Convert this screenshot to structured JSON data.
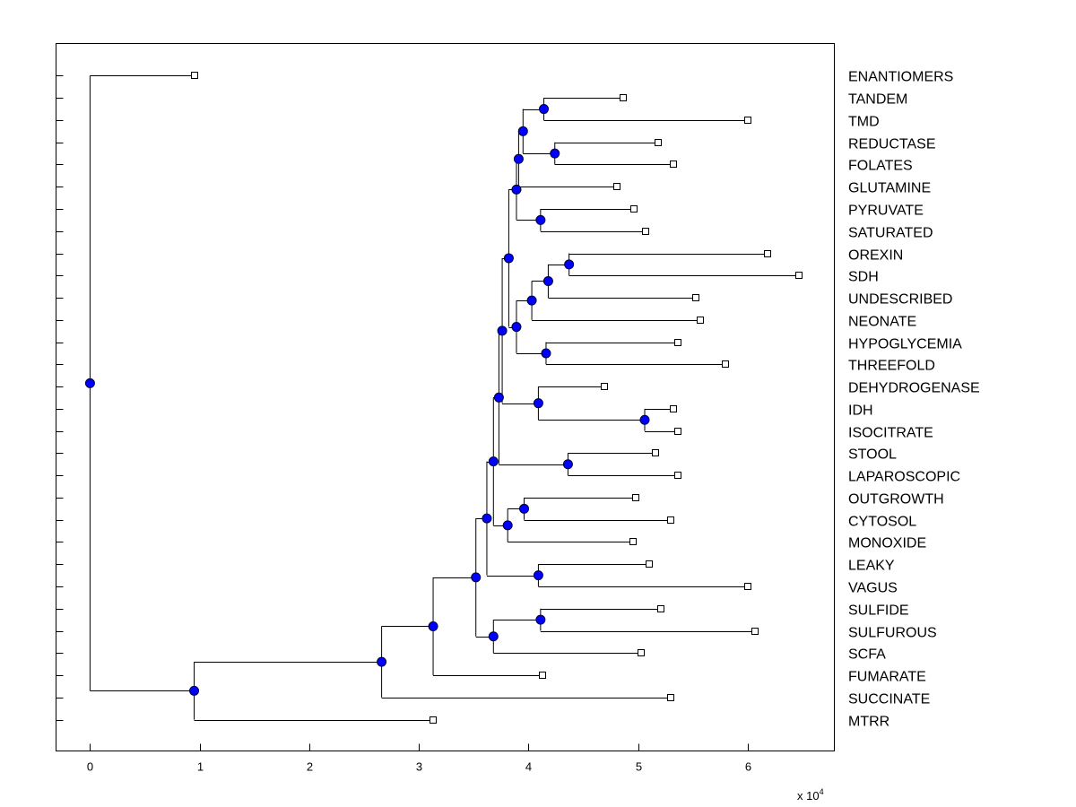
{
  "chart_data": {
    "type": "dendrogram",
    "title": "",
    "xlabel": "",
    "x_multiplier": {
      "base": "x 10",
      "exponent": "4"
    },
    "xlim": [
      -0.31,
      6.79
    ],
    "ylim": [
      -1.45,
      30.41
    ],
    "xticks": [
      0,
      1,
      2,
      3,
      4,
      5,
      6
    ],
    "xtick_labels": [
      "0",
      "1",
      "2",
      "3",
      "4",
      "5",
      "6"
    ],
    "colors": {
      "internal_node": "#0000ff",
      "leaf_fill": "#ffffff",
      "line": "#000000"
    },
    "leaves": [
      {
        "label": "ENANTIOMERS",
        "x": 0.95
      },
      {
        "label": "TANDEM",
        "x": 4.86
      },
      {
        "label": "TMD",
        "x": 6.0
      },
      {
        "label": "REDUCTASE",
        "x": 5.18
      },
      {
        "label": "FOLATES",
        "x": 5.32
      },
      {
        "label": "GLUTAMINE",
        "x": 4.81
      },
      {
        "label": "PYRUVATE",
        "x": 4.96
      },
      {
        "label": "SATURATED",
        "x": 5.07
      },
      {
        "label": "OREXIN",
        "x": 6.18
      },
      {
        "label": "SDH",
        "x": 6.47
      },
      {
        "label": "UNDESCRIBED",
        "x": 5.53
      },
      {
        "label": "NEONATE",
        "x": 5.57
      },
      {
        "label": "HYPOGLYCEMIA",
        "x": 5.36
      },
      {
        "label": "THREEFOLD",
        "x": 5.8
      },
      {
        "label": "DEHYDROGENASE",
        "x": 4.69
      },
      {
        "label": "IDH",
        "x": 5.32
      },
      {
        "label": "ISOCITRATE",
        "x": 5.36
      },
      {
        "label": "STOOL",
        "x": 5.16
      },
      {
        "label": "LAPAROSCOPIC",
        "x": 5.36
      },
      {
        "label": "OUTGROWTH",
        "x": 4.98
      },
      {
        "label": "CYTOSOL",
        "x": 5.3
      },
      {
        "label": "MONOXIDE",
        "x": 4.95
      },
      {
        "label": "LEAKY",
        "x": 5.1
      },
      {
        "label": "VAGUS",
        "x": 6.0
      },
      {
        "label": "SULFIDE",
        "x": 5.21
      },
      {
        "label": "SULFUROUS",
        "x": 6.07
      },
      {
        "label": "SCFA",
        "x": 5.03
      },
      {
        "label": "FUMARATE",
        "x": 4.13
      },
      {
        "label": "SUCCINATE",
        "x": 5.3
      },
      {
        "label": "MTRR",
        "x": 3.13
      }
    ],
    "tree": {
      "x": 0,
      "children": [
        0,
        {
          "x": 0.95,
          "children": [
            {
              "x": 2.66,
              "children": [
                {
                  "x": 3.13,
                  "children": [
                    {
                      "x": 3.52,
                      "children": [
                        {
                          "x": 3.62,
                          "children": [
                            {
                              "x": 3.68,
                              "children": [
                                {
                                  "x": 3.73,
                                  "children": [
                                    {
                                      "x": 3.76,
                                      "children": [
                                        {
                                          "x": 3.82,
                                          "children": [
                                            {
                                              "x": 3.89,
                                              "children": [
                                                {
                                                  "x": 3.91,
                                                  "children": [
                                                    {
                                                      "x": 3.95,
                                                      "children": [
                                                        {
                                                          "x": 4.14,
                                                          "children": [
                                                            1,
                                                            2
                                                          ]
                                                        },
                                                        {
                                                          "x": 4.24,
                                                          "children": [
                                                            3,
                                                            4
                                                          ]
                                                        }
                                                      ]
                                                    },
                                                    5
                                                  ]
                                                },
                                                {
                                                  "x": 4.11,
                                                  "children": [
                                                    6,
                                                    7
                                                  ]
                                                }
                                              ]
                                            },
                                            {
                                              "x": 3.89,
                                              "children": [
                                                {
                                                  "x": 4.03,
                                                  "children": [
                                                    {
                                                      "x": 4.18,
                                                      "children": [
                                                        {
                                                          "x": 4.37,
                                                          "children": [
                                                            8,
                                                            9
                                                          ]
                                                        },
                                                        10
                                                      ]
                                                    },
                                                    11
                                                  ]
                                                },
                                                {
                                                  "x": 4.16,
                                                  "children": [
                                                    12,
                                                    13
                                                  ]
                                                }
                                              ]
                                            }
                                          ]
                                        },
                                        {
                                          "x": 4.09,
                                          "children": [
                                            14,
                                            {
                                              "x": 5.06,
                                              "children": [
                                                15,
                                                16
                                              ]
                                            }
                                          ]
                                        }
                                      ]
                                    },
                                    {
                                      "x": 4.36,
                                      "children": [
                                        17,
                                        18
                                      ]
                                    }
                                  ]
                                },
                                {
                                  "x": 3.81,
                                  "children": [
                                    {
                                      "x": 3.96,
                                      "children": [
                                        19,
                                        20
                                      ]
                                    },
                                    21
                                  ]
                                }
                              ]
                            },
                            {
                              "x": 4.09,
                              "children": [
                                22,
                                23
                              ]
                            }
                          ]
                        },
                        {
                          "x": 3.68,
                          "children": [
                            {
                              "x": 4.11,
                              "children": [
                                24,
                                25
                              ]
                            },
                            26
                          ]
                        }
                      ]
                    },
                    27
                  ]
                },
                28
              ]
            },
            29
          ]
        }
      ]
    }
  }
}
